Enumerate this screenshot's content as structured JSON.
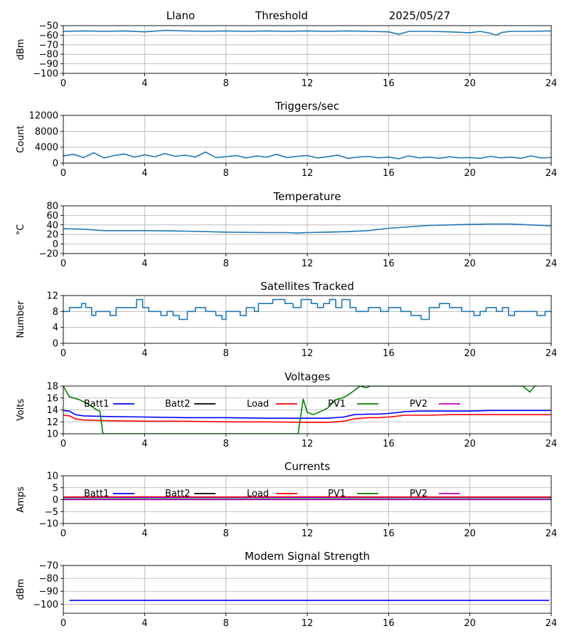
{
  "header": {
    "site": "Llano",
    "metric": "Threshold",
    "date": "2025/05/27"
  },
  "chart_data": [
    {
      "type": "line",
      "title": "",
      "ylabel": "dBm",
      "xlim": [
        0,
        24
      ],
      "xticks": [
        0,
        4,
        8,
        12,
        16,
        20,
        24
      ],
      "ylim": [
        -100,
        -50
      ],
      "yticks": [
        -100,
        -90,
        -80,
        -70,
        -60,
        -50
      ],
      "grid": true,
      "series": [
        {
          "color": "#1f77b4",
          "x": [
            0,
            1,
            2,
            3,
            4,
            5,
            6,
            7,
            8,
            9,
            10,
            11,
            12,
            13,
            14,
            15,
            16,
            16.5,
            17,
            18,
            19,
            20,
            20.5,
            21,
            21.3,
            21.6,
            22,
            23,
            24
          ],
          "y": [
            -56,
            -55.5,
            -56,
            -55.5,
            -56.5,
            -55,
            -55.5,
            -56,
            -55.5,
            -56,
            -55.5,
            -56,
            -55.5,
            -56,
            -55.5,
            -56,
            -56.5,
            -59,
            -56,
            -56,
            -56.5,
            -57.5,
            -56,
            -58,
            -60,
            -57,
            -56,
            -56,
            -55.5
          ]
        }
      ]
    },
    {
      "type": "line",
      "title": "Triggers/sec",
      "ylabel": "Count",
      "xlim": [
        0,
        24
      ],
      "xticks": [
        0,
        4,
        8,
        12,
        16,
        20,
        24
      ],
      "ylim": [
        0,
        12000
      ],
      "yticks": [
        0,
        4000,
        8000,
        12000
      ],
      "grid": true,
      "series": [
        {
          "color": "#1f77b4",
          "x": [
            0,
            0.5,
            1,
            1.5,
            2,
            2.5,
            3,
            3.5,
            4,
            4.5,
            5,
            5.5,
            6,
            6.5,
            7,
            7.5,
            8,
            8.5,
            9,
            9.5,
            10,
            10.5,
            11,
            11.5,
            12,
            12.5,
            13,
            13.5,
            14,
            14.5,
            15,
            15.5,
            16,
            16.5,
            17,
            17.5,
            18,
            18.5,
            19,
            19.5,
            20,
            20.5,
            21,
            21.5,
            22,
            22.5,
            23,
            23.5,
            24
          ],
          "y": [
            1800,
            2200,
            1400,
            2600,
            1300,
            1900,
            2300,
            1500,
            2100,
            1600,
            2400,
            1700,
            2000,
            1500,
            2800,
            1400,
            1600,
            1900,
            1300,
            1800,
            1500,
            2200,
            1400,
            1700,
            1900,
            1300,
            1600,
            2000,
            1200,
            1500,
            1700,
            1300,
            1500,
            1100,
            1800,
            1300,
            1500,
            1200,
            1600,
            1300,
            1400,
            1200,
            1700,
            1300,
            1500,
            1200,
            1800,
            1300,
            1400
          ]
        }
      ]
    },
    {
      "type": "line",
      "title": "Temperature",
      "ylabel": "°C",
      "xlim": [
        0,
        24
      ],
      "xticks": [
        0,
        4,
        8,
        12,
        16,
        20,
        24
      ],
      "ylim": [
        -20,
        80
      ],
      "yticks": [
        -20,
        0,
        20,
        40,
        60,
        80
      ],
      "grid": true,
      "series": [
        {
          "color": "#1f77b4",
          "x": [
            0,
            1,
            2,
            4,
            6,
            8,
            10,
            11,
            11.5,
            12,
            13,
            14,
            15,
            16,
            17,
            18,
            19,
            20,
            21,
            22,
            23,
            24
          ],
          "y": [
            32,
            31,
            28,
            28,
            27,
            25,
            24,
            24,
            23,
            24,
            25,
            26,
            28,
            33,
            36,
            39,
            40,
            41,
            42,
            42,
            40,
            38
          ]
        }
      ]
    },
    {
      "type": "line",
      "title": "Satellites Tracked",
      "ylabel": "Number",
      "xlim": [
        0,
        24
      ],
      "xticks": [
        0,
        4,
        8,
        12,
        16,
        20,
        24
      ],
      "ylim": [
        0,
        12
      ],
      "yticks": [
        0,
        4,
        8,
        12
      ],
      "grid": true,
      "series": [
        {
          "color": "#1f77b4",
          "step": true,
          "x": [
            0,
            0.3,
            0.9,
            1.1,
            1.4,
            1.6,
            2.3,
            2.6,
            3.6,
            3.9,
            4.2,
            4.8,
            5.1,
            5.4,
            5.7,
            6.1,
            6.5,
            7.0,
            7.5,
            7.8,
            8.0,
            8.7,
            9.0,
            9.4,
            9.6,
            10.3,
            10.9,
            11.3,
            11.7,
            12.2,
            12.5,
            12.8,
            13.1,
            13.4,
            13.7,
            14.1,
            14.4,
            15.0,
            15.6,
            16.0,
            16.6,
            17.1,
            17.6,
            18.0,
            18.5,
            19.0,
            19.6,
            20.2,
            20.5,
            20.8,
            21.3,
            21.6,
            21.9,
            22.2,
            22.8,
            23.3,
            23.7,
            24
          ],
          "y": [
            8,
            9,
            10,
            9,
            7,
            8,
            7,
            9,
            11,
            9,
            8,
            7,
            8,
            7,
            6,
            8,
            9,
            8,
            7,
            6,
            8,
            7,
            9,
            8,
            10,
            11,
            10,
            9,
            11,
            10,
            9,
            10,
            11,
            9,
            11,
            9,
            8,
            9,
            8,
            9,
            8,
            7,
            6,
            9,
            10,
            9,
            8,
            7,
            8,
            9,
            8,
            9,
            7,
            8,
            8,
            7,
            8,
            8
          ]
        }
      ]
    },
    {
      "type": "line",
      "title": "Voltages",
      "ylabel": "Volts",
      "xlim": [
        0,
        24
      ],
      "xticks": [
        0,
        4,
        8,
        12,
        16,
        20,
        24
      ],
      "ylim": [
        10,
        18
      ],
      "yticks": [
        10,
        12,
        14,
        16,
        18
      ],
      "grid": true,
      "legend": "top, single row",
      "series": [
        {
          "name": "Batt1",
          "color": "#0000ff",
          "x": [
            0,
            0.3,
            0.6,
            1,
            2,
            4,
            6,
            8,
            10,
            12,
            13,
            13.8,
            14.3,
            15,
            15.5,
            16,
            16.3,
            16.8,
            17.5,
            18,
            19,
            20,
            21,
            22,
            23,
            24
          ],
          "y": [
            13.9,
            13.8,
            13.2,
            13.0,
            12.9,
            12.8,
            12.7,
            12.7,
            12.6,
            12.6,
            12.6,
            12.8,
            13.2,
            13.3,
            13.3,
            13.4,
            13.5,
            13.7,
            13.8,
            13.8,
            13.8,
            13.8,
            13.9,
            13.9,
            13.9,
            13.9
          ]
        },
        {
          "name": "Batt2",
          "color": "#000000",
          "x": [],
          "y": []
        },
        {
          "name": "Load",
          "color": "#ff0000",
          "x": [
            0,
            0.3,
            0.6,
            1,
            2,
            4,
            6,
            8,
            10,
            12,
            13,
            13.8,
            14.3,
            15,
            15.5,
            16,
            16.3,
            16.8,
            17.5,
            18,
            19,
            20,
            21,
            22,
            23,
            24
          ],
          "y": [
            13.1,
            13.0,
            12.5,
            12.3,
            12.2,
            12.1,
            12.1,
            12.0,
            12.0,
            11.9,
            11.9,
            12.1,
            12.5,
            12.7,
            12.7,
            12.8,
            12.9,
            13.1,
            13.1,
            13.1,
            13.2,
            13.2,
            13.2,
            13.2,
            13.2,
            13.2
          ]
        },
        {
          "name": "PV1",
          "color": "#008000",
          "x": [
            0,
            0.3,
            0.8,
            1.2,
            1.6,
            1.8,
            1.95,
            11.55,
            11.8,
            12,
            12.3,
            12.7,
            13,
            13.4,
            13.8,
            14.1,
            14.4,
            14.6,
            14.9,
            15.1,
            15.5,
            22.6,
            22.95,
            23.2,
            23.3
          ],
          "y": [
            18,
            16.2,
            15.7,
            15.0,
            14.1,
            13.8,
            10.0,
            10.0,
            15.8,
            13.6,
            13.2,
            13.8,
            14.3,
            15.7,
            16.1,
            16.7,
            17.5,
            18,
            17.7,
            18,
            18,
            18,
            17.0,
            18,
            18
          ]
        },
        {
          "name": "PV2",
          "color": "#bf00bf",
          "x": [],
          "y": []
        }
      ]
    },
    {
      "type": "line",
      "title": "Currents",
      "ylabel": "Amps",
      "xlim": [
        0,
        24
      ],
      "xticks": [
        0,
        4,
        8,
        12,
        16,
        20,
        24
      ],
      "ylim": [
        -10,
        10
      ],
      "yticks": [
        -10,
        -5,
        0,
        5,
        10
      ],
      "grid": true,
      "legend": "top, single row",
      "series": [
        {
          "name": "Batt1",
          "color": "#0000ff",
          "x": [
            0,
            24
          ],
          "y": [
            0.9,
            0.9
          ]
        },
        {
          "name": "Batt2",
          "color": "#000000",
          "x": [],
          "y": []
        },
        {
          "name": "Load",
          "color": "#ff0000",
          "x": [
            0,
            4,
            8,
            12,
            16,
            20,
            24
          ],
          "y": [
            1.1,
            1.2,
            1.1,
            1.2,
            1.1,
            1.1,
            1.1
          ]
        },
        {
          "name": "PV1",
          "color": "#008000",
          "x": [
            0,
            24
          ],
          "y": [
            0.2,
            0.2
          ]
        },
        {
          "name": "PV2",
          "color": "#bf00bf",
          "x": [
            0,
            24
          ],
          "y": [
            0,
            0
          ]
        }
      ]
    },
    {
      "type": "line",
      "title": "Modem Signal Strength",
      "ylabel": "dBm",
      "xlim": [
        0,
        24
      ],
      "xticks": [
        0,
        4,
        8,
        12,
        16,
        20,
        24
      ],
      "ylim": [
        -107,
        -70
      ],
      "yticks": [
        -100,
        -90,
        -80,
        -70
      ],
      "grid": true,
      "series": [
        {
          "color": "#0000ff",
          "x": [
            0.3,
            23.9
          ],
          "y": [
            -97,
            -97
          ]
        }
      ]
    }
  ]
}
